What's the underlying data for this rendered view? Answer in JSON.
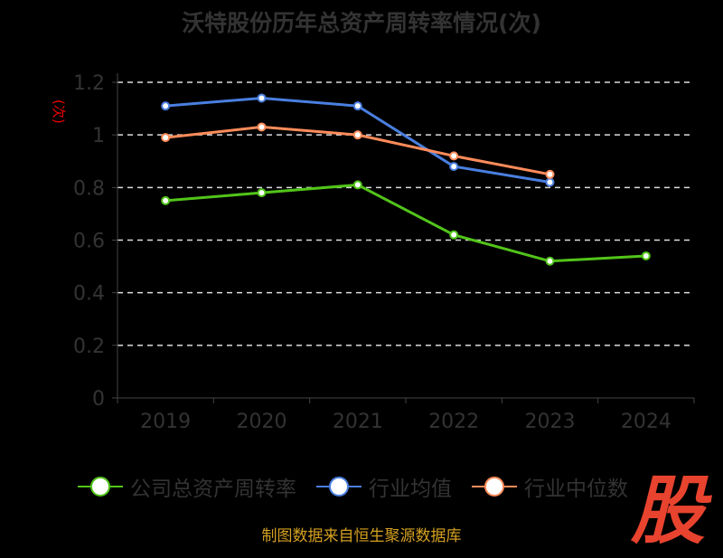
{
  "chart_data": {
    "type": "line",
    "title": "沃特股份历年总资产周转率情况(次)",
    "ylabel": "(次)",
    "xlabel": "",
    "categories": [
      "2019",
      "2020",
      "2021",
      "2022",
      "2023",
      "2024"
    ],
    "ylim": [
      0,
      1.2
    ],
    "yticks": [
      "0",
      "0.2",
      "0.4",
      "0.6",
      "0.8",
      "1",
      "1.2"
    ],
    "grid": true,
    "legend_position": "bottom",
    "series": [
      {
        "name": "公司总资产周转率",
        "color": "#52c41a",
        "values": [
          0.75,
          0.78,
          0.81,
          0.62,
          0.52,
          0.54
        ]
      },
      {
        "name": "行业均值",
        "color": "#4a7fe0",
        "values": [
          1.11,
          1.14,
          1.11,
          0.88,
          0.82,
          null
        ]
      },
      {
        "name": "行业中位数",
        "color": "#ff8c5a",
        "values": [
          0.99,
          1.03,
          1.0,
          0.92,
          0.85,
          null
        ]
      }
    ]
  },
  "source": "制图数据来自恒生聚源数据库",
  "logo_text": "股"
}
